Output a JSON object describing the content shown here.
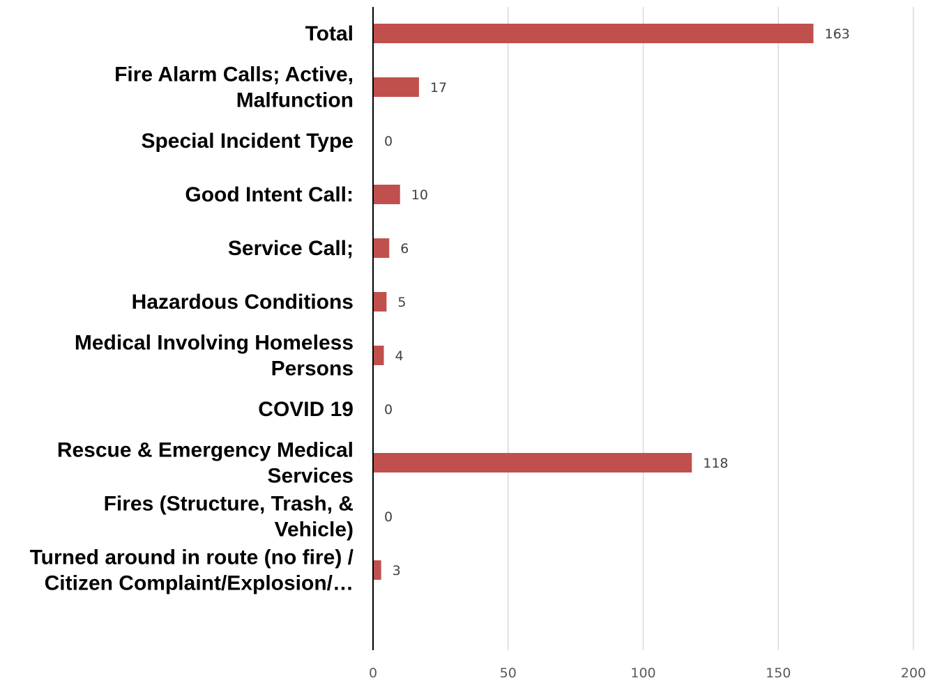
{
  "chart_data": {
    "type": "bar",
    "orientation": "horizontal",
    "categories": [
      [
        "Total"
      ],
      [
        "Fire Alarm Calls; Active,",
        "Malfunction"
      ],
      [
        "Special Incident Type"
      ],
      [
        "Good Intent Call:"
      ],
      [
        "Service Call;"
      ],
      [
        "Hazardous Conditions"
      ],
      [
        "Medical Involving Homeless",
        "Persons"
      ],
      [
        "COVID 19"
      ],
      [
        "Rescue & Emergency Medical",
        "Services"
      ],
      [
        "Fires (Structure, Trash, &",
        "Vehicle)"
      ],
      [
        "Turned around in route (no fire) /",
        "Citizen Complaint/Explosion/…"
      ]
    ],
    "values": [
      163,
      17,
      0,
      10,
      6,
      5,
      4,
      0,
      118,
      0,
      3
    ],
    "xlim": [
      0,
      200
    ],
    "xticks": [
      0,
      50,
      100,
      150,
      200
    ],
    "grid": true,
    "legend": "none",
    "bar_color": "#c0504d",
    "data_labels": true
  }
}
